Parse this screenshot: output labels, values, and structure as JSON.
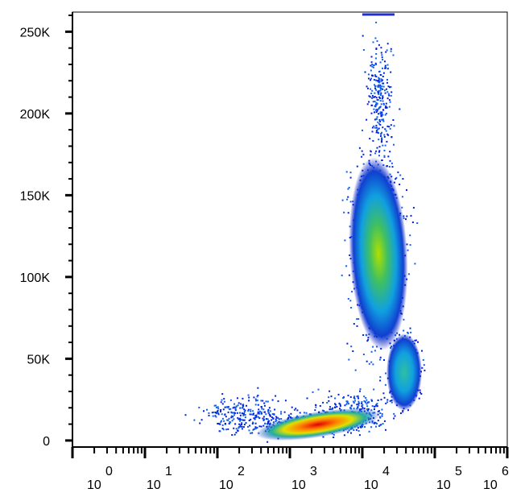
{
  "chart_data": {
    "type": "scatter",
    "xscale": "log",
    "xlim": [
      1,
      1000000
    ],
    "xticks": [
      {
        "value": 1,
        "label": "10",
        "exponent": "0"
      },
      {
        "value": 10,
        "label": "10",
        "exponent": "1"
      },
      {
        "value": 100,
        "label": "10",
        "exponent": "2"
      },
      {
        "value": 1000,
        "label": "10",
        "exponent": "3"
      },
      {
        "value": 10000,
        "label": "10",
        "exponent": "4"
      },
      {
        "value": 100000,
        "label": "10",
        "exponent": "5"
      },
      {
        "value": 1000000,
        "label": "10",
        "exponent": "6"
      }
    ],
    "ylim": [
      -4000,
      262000
    ],
    "yticks": [
      0,
      {
        "value": 50000,
        "label": "50K"
      },
      {
        "value": 100000,
        "label": "100K"
      },
      {
        "value": 150000,
        "label": "150K"
      },
      {
        "value": 200000,
        "label": "200K"
      },
      {
        "value": 250000,
        "label": "250K"
      }
    ]
  }
}
